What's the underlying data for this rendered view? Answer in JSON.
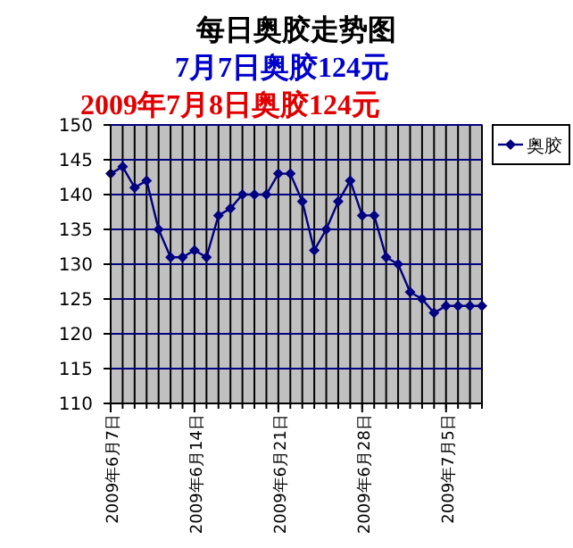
{
  "chart_data": {
    "type": "line",
    "title": "每日奥胶走势图",
    "subtitle": "7月7日奥胶124元",
    "annotations": [
      "2009年7月8日奥胶124元"
    ],
    "x": [
      "2009-06-07",
      "2009-06-08",
      "2009-06-09",
      "2009-06-10",
      "2009-06-11",
      "2009-06-12",
      "2009-06-13",
      "2009-06-14",
      "2009-06-15",
      "2009-06-16",
      "2009-06-17",
      "2009-06-18",
      "2009-06-19",
      "2009-06-20",
      "2009-06-21",
      "2009-06-22",
      "2009-06-23",
      "2009-06-24",
      "2009-06-25",
      "2009-06-26",
      "2009-06-27",
      "2009-06-28",
      "2009-06-29",
      "2009-06-30",
      "2009-07-01",
      "2009-07-02",
      "2009-07-03",
      "2009-07-04",
      "2009-07-05",
      "2009-07-06",
      "2009-07-07",
      "2009-07-08"
    ],
    "series": [
      {
        "name": "奥胶",
        "color": "#000080",
        "values": [
          143,
          144,
          141,
          142,
          135,
          131,
          131,
          132,
          131,
          137,
          138,
          140,
          140,
          140,
          143,
          143,
          139,
          132,
          135,
          139,
          142,
          137,
          137,
          131,
          130,
          126,
          125,
          123,
          124,
          124,
          124,
          124
        ]
      }
    ],
    "xlim": [
      "2009-06-07",
      "2009-07-08"
    ],
    "xticks": [
      {
        "value": "2009-06-07",
        "label": "2009年6月7日"
      },
      {
        "value": "2009-06-14",
        "label": "2009年6月14日"
      },
      {
        "value": "2009-06-21",
        "label": "2009年6月21日"
      },
      {
        "value": "2009-06-28",
        "label": "2009年6月28日"
      },
      {
        "value": "2009-07-05",
        "label": "2009年7月5日"
      }
    ],
    "ylim": [
      110,
      150
    ],
    "yticks": [
      110,
      115,
      120,
      125,
      130,
      135,
      140,
      145,
      150
    ],
    "grid": true,
    "legend": "top right",
    "marker": "diamond",
    "line_style": "solid"
  }
}
